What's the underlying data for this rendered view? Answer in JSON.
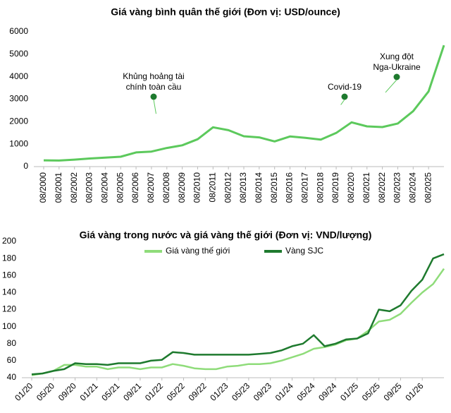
{
  "chart_data": [
    {
      "type": "line",
      "title": "Giá vàng bình quân thế giới (Đơn vị: USD/ounce)",
      "categories": [
        "08/2000",
        "08/2001",
        "08/2002",
        "08/2003",
        "08/2004",
        "08/2005",
        "08/2006",
        "08/2007",
        "08/2008",
        "08/2009",
        "08/2010",
        "08/2011",
        "08/2012",
        "08/2013",
        "08/2014",
        "08/2015",
        "08/2016",
        "08/2017",
        "08/2018",
        "08/2019",
        "08/2020",
        "08/2021",
        "08/2022",
        "08/2023",
        "08/2024",
        "08/2025",
        null
      ],
      "series": [
        {
          "name": null,
          "color": "#5cc95c",
          "values": [
            280,
            270,
            310,
            360,
            400,
            440,
            630,
            670,
            830,
            950,
            1220,
            1750,
            1620,
            1350,
            1300,
            1120,
            1340,
            1280,
            1200,
            1500,
            1970,
            1790,
            1760,
            1920,
            2470,
            3350,
            5400
          ]
        }
      ],
      "ylim": [
        0,
        6000
      ],
      "yticks": [
        0,
        1000,
        2000,
        3000,
        4000,
        5000,
        6000
      ],
      "annotations": [
        {
          "lines": [
            "Khủng hoảng tài",
            "chính toàn cầu"
          ]
        },
        {
          "lines": [
            "Covid-19"
          ]
        },
        {
          "lines": [
            "Xung đột",
            "Nga-Ukraine"
          ]
        }
      ]
    },
    {
      "type": "line",
      "title": "Giá vàng trong nước và giá vàng thế giới (Đơn vị: VND/lượng)",
      "categories": [
        "01/20",
        null,
        "05/20",
        null,
        "09/20",
        null,
        "01/21",
        null,
        "05/21",
        null,
        "09/21",
        null,
        "01/22",
        null,
        "05/22",
        null,
        "09/22",
        null,
        "01/23",
        null,
        "05/23",
        null,
        "09/23",
        null,
        "01/24",
        null,
        "05/24",
        null,
        "09/24",
        null,
        "01/25",
        null,
        "05/25",
        null,
        "09/25",
        null,
        "01/26",
        null,
        null
      ],
      "series": [
        {
          "name": "Giá vàng thế giới",
          "color": "#8fdc7a",
          "values": [
            43,
            45,
            48,
            55,
            55,
            53,
            53,
            50,
            52,
            52,
            50,
            52,
            52,
            56,
            54,
            51,
            50,
            50,
            53,
            54,
            56,
            56,
            57,
            60,
            64,
            68,
            74,
            76,
            79,
            84,
            86,
            95,
            106,
            108,
            115,
            128,
            140,
            150,
            168
          ]
        },
        {
          "name": "Vàng SJC",
          "color": "#1e7a2e",
          "values": [
            44,
            45,
            48,
            50,
            57,
            56,
            56,
            55,
            57,
            57,
            57,
            60,
            61,
            70,
            69,
            67,
            67,
            67,
            67,
            67,
            67,
            68,
            69,
            72,
            77,
            80,
            90,
            77,
            80,
            85,
            86,
            92,
            120,
            118,
            125,
            142,
            155,
            180,
            185
          ]
        }
      ],
      "ylim": [
        40,
        200
      ],
      "yticks": [
        40,
        60,
        80,
        100,
        120,
        140,
        160,
        180,
        200
      ]
    }
  ]
}
